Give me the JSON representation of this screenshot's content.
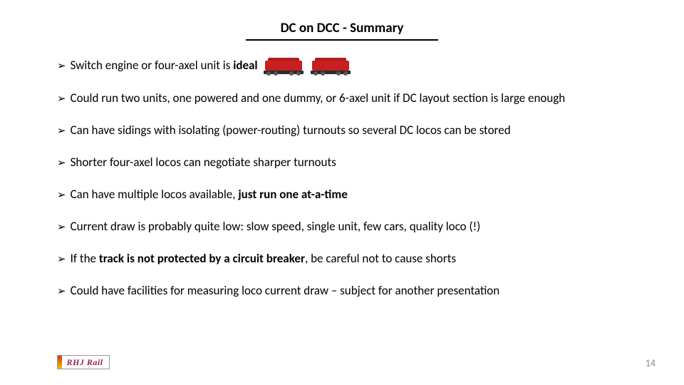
{
  "title": "DC on DCC - Summary",
  "bullets": [
    {
      "pre": "Switch engine or four-axel unit is ",
      "bold": "ideal",
      "post": "",
      "hasTrains": true
    },
    {
      "pre": "Could run two units, one powered and one dummy, or 6-axel unit if DC layout section is large enough",
      "bold": "",
      "post": ""
    },
    {
      "pre": "Can have sidings with isolating (power-routing) turnouts so several DC locos can be stored",
      "bold": "",
      "post": ""
    },
    {
      "pre": "Shorter four-axel locos can negotiate sharper turnouts",
      "bold": "",
      "post": ""
    },
    {
      "pre": "Can have multiple locos available, ",
      "bold": "just run one at-a-time",
      "post": ""
    },
    {
      "pre": "Current draw is probably quite low:  slow speed, single unit, few cars, quality loco (!)",
      "bold": "",
      "post": ""
    },
    {
      "pre": "If the ",
      "bold": "track is not protected by a circuit breaker",
      "post": ", be careful not to cause shorts"
    },
    {
      "pre": "Could have facilities for measuring loco current draw – subject for another presentation",
      "bold": "",
      "post": ""
    }
  ],
  "logo_text": "RHJ Rail",
  "page_number": "14",
  "colors": {
    "text": "#000000",
    "page_num": "#8a8a8a",
    "train_red": "#c62020"
  }
}
